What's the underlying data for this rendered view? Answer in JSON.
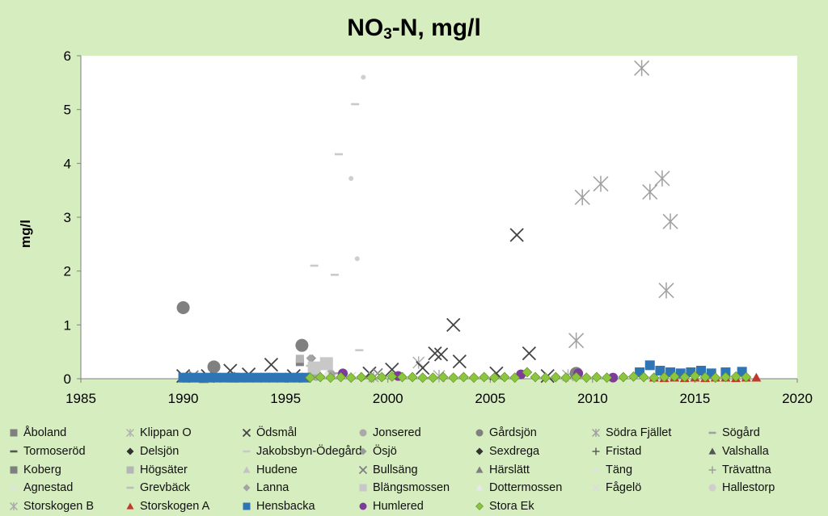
{
  "chart_data": {
    "type": "scatter",
    "title_main": "NO",
    "title_sub": "3",
    "title_rest": "-N, mg/l",
    "xlabel": "",
    "ylabel": "mg/l",
    "xlim": [
      1985,
      2020
    ],
    "ylim": [
      0,
      6
    ],
    "xticks": [
      "1985",
      "1990",
      "1995",
      "2000",
      "2005",
      "2010",
      "2015",
      "2020"
    ],
    "yticks": [
      "0",
      "1",
      "2",
      "3",
      "4",
      "5",
      "6"
    ],
    "grid": false,
    "legend_position": "bottom",
    "series": [
      {
        "name": "Åboland",
        "marker": "square",
        "color": "#7f7f7f",
        "size": 6,
        "x": [
          1990.2,
          1991,
          1992.5
        ],
        "y": [
          0.02,
          0.01,
          0.02
        ]
      },
      {
        "name": "Klippan O",
        "marker": "asterisk",
        "color": "#b0b0b0",
        "size": 7,
        "x": [
          2001.5,
          2002.5,
          2008.8
        ],
        "y": [
          0.3,
          0.05,
          0.06
        ]
      },
      {
        "name": "Ödsmål",
        "marker": "x",
        "color": "#444444",
        "size": 8,
        "x": [
          1990,
          1991.2,
          1992.3,
          1993.2,
          1994.3,
          1995.4,
          1999.1,
          2000.2,
          2001.7,
          2002.3,
          2002.6,
          2003.2,
          2003.5,
          2005.3,
          2006.3,
          2006.9,
          2007.8
        ],
        "y": [
          0.05,
          0.05,
          0.15,
          0.08,
          0.26,
          0.05,
          0.1,
          0.17,
          0.2,
          0.47,
          0.45,
          1.0,
          0.32,
          0.1,
          2.67,
          0.47,
          0.05
        ]
      },
      {
        "name": "Jonsered",
        "marker": "circle",
        "color": "#a9a9a9",
        "size": 6,
        "x": [
          1996.5,
          1997.2
        ],
        "y": [
          0.05,
          0.08
        ]
      },
      {
        "name": "Gårdsjön",
        "marker": "circle",
        "color": "#808080",
        "size": 8,
        "x": [
          1990,
          1991.5,
          1995.8,
          2009.2
        ],
        "y": [
          1.32,
          0.22,
          0.62,
          0.1
        ]
      },
      {
        "name": "Södra Fjället",
        "marker": "asterisk",
        "color": "#a0a0a0",
        "size": 9,
        "x": [
          2009.2,
          2009.5,
          2010.4,
          2012.4,
          2012.8,
          2013.4,
          2013.6,
          2013.8
        ],
        "y": [
          0.71,
          3.37,
          3.62,
          5.77,
          3.47,
          3.72,
          1.64,
          2.92
        ]
      },
      {
        "name": "Sögård",
        "marker": "dash",
        "color": "#a0a0a0",
        "size": 5,
        "x": [
          1996.5,
          1997.5
        ],
        "y": [
          0.2,
          0.1
        ]
      },
      {
        "name": "Tormoseröd",
        "marker": "dash",
        "color": "#555555",
        "size": 5,
        "x": [
          1994
        ],
        "y": [
          0.02
        ]
      },
      {
        "name": "Delsjön",
        "marker": "diamond",
        "color": "#303030",
        "size": 5,
        "x": [
          1993.5
        ],
        "y": [
          0.03
        ]
      },
      {
        "name": "Jakobsbyn-Ödegård",
        "marker": "dash",
        "color": "#c9c9c9",
        "size": 5,
        "x": [
          1996.4,
          1997.4,
          1997.6,
          1998.4,
          1998.6
        ],
        "y": [
          2.1,
          1.93,
          4.17,
          5.1,
          0.53
        ]
      },
      {
        "name": "Ösjö",
        "marker": "diamond",
        "color": "#9a9a9a",
        "size": 5,
        "x": [
          1996.3
        ],
        "y": [
          0.38
        ]
      },
      {
        "name": "Sexdrega",
        "marker": "diamond",
        "color": "#333333",
        "size": 5,
        "x": [
          1991
        ],
        "y": [
          0.04
        ]
      },
      {
        "name": "Fristad",
        "marker": "plus",
        "color": "#555555",
        "size": 5,
        "x": [
          1992.5
        ],
        "y": [
          0.05
        ]
      },
      {
        "name": "Valshalla",
        "marker": "triangle",
        "color": "#555555",
        "size": 5,
        "x": [
          1993
        ],
        "y": [
          0.04
        ]
      },
      {
        "name": "Koberg",
        "marker": "square",
        "color": "#7f7f7f",
        "size": 5,
        "x": [
          1995.7
        ],
        "y": [
          0.31
        ]
      },
      {
        "name": "Högsäter",
        "marker": "square",
        "color": "#b5b5b5",
        "size": 5,
        "x": [
          1995.7
        ],
        "y": [
          0.37
        ]
      },
      {
        "name": "Hudene",
        "marker": "triangle",
        "color": "#c3c3c3",
        "size": 5,
        "x": [
          1994.5
        ],
        "y": [
          0.05
        ]
      },
      {
        "name": "Bullsäng",
        "marker": "x",
        "color": "#7f7f7f",
        "size": 6,
        "x": [
          1990.5,
          1999.5
        ],
        "y": [
          0.06,
          0.1
        ]
      },
      {
        "name": "Härslätt",
        "marker": "triangle",
        "color": "#7f7f7f",
        "size": 5,
        "x": [
          1995
        ],
        "y": [
          0.03
        ]
      },
      {
        "name": "Täng",
        "marker": "dash",
        "color": "#e0e0e0",
        "size": 5,
        "x": [
          1995.2
        ],
        "y": [
          0.02
        ]
      },
      {
        "name": "Trävattna",
        "marker": "plus",
        "color": "#999999",
        "size": 5,
        "x": [
          1998.2
        ],
        "y": [
          0.04
        ]
      },
      {
        "name": "Agnestad",
        "marker": "dash",
        "color": "#e0e0e0",
        "size": 5,
        "x": [
          1997.8
        ],
        "y": [
          0.06
        ]
      },
      {
        "name": "Grevbäck",
        "marker": "dash",
        "color": "#bdbdbd",
        "size": 5,
        "x": [
          1996.2
        ],
        "y": [
          0.24
        ]
      },
      {
        "name": "Lanna",
        "marker": "diamond",
        "color": "#a3a3a3",
        "size": 5,
        "x": [
          1996.2
        ],
        "y": [
          0.38
        ]
      },
      {
        "name": "Blängsmossen",
        "marker": "square",
        "color": "#c8c8c8",
        "size": 8,
        "x": [
          1996.4,
          1997
        ],
        "y": [
          0.2,
          0.28
        ]
      },
      {
        "name": "Dottermossen",
        "marker": "triangle",
        "color": "#e8e8e8",
        "size": 5,
        "x": [
          1997
        ],
        "y": [
          0.1
        ]
      },
      {
        "name": "Fågelö",
        "marker": "x",
        "color": "#dddddd",
        "size": 6,
        "x": [
          1998.2
        ],
        "y": [
          0.03
        ]
      },
      {
        "name": "Hallestorp",
        "marker": "circle",
        "color": "#cfcfcf",
        "size": 3,
        "x": [
          1998.2,
          1998.5,
          1998.8
        ],
        "y": [
          3.72,
          2.23,
          5.6
        ]
      },
      {
        "name": "Storskogen B",
        "marker": "asterisk",
        "color": "#a9a9a9",
        "size": 6,
        "x": [
          1999.3
        ],
        "y": [
          0.03
        ]
      },
      {
        "name": "Storskogen A",
        "marker": "triangle",
        "color": "#c0392b",
        "size": 6,
        "x": [
          2013,
          2013.5,
          2014,
          2014.5,
          2015,
          2015.5,
          2016,
          2016.5,
          2017,
          2017.5,
          2018
        ],
        "y": [
          0.02,
          0.01,
          0.02,
          0.01,
          0.02,
          0.01,
          0.02,
          0.02,
          0.01,
          0.02,
          0.02
        ]
      },
      {
        "name": "Hensbacka",
        "marker": "square",
        "color": "#2e75b6",
        "size": 6,
        "x": [
          1990,
          1990.4,
          1990.8,
          1991.2,
          1991.6,
          1992,
          1992.4,
          1992.8,
          1993.2,
          1993.6,
          1994,
          1994.4,
          1994.8,
          1995.2,
          1995.6,
          1996,
          2012.3,
          2012.8,
          2013.3,
          2013.8,
          2014.3,
          2014.8,
          2015.3,
          2015.8,
          2016.5,
          2017.3
        ],
        "y": [
          0.02,
          0.02,
          0.02,
          0.02,
          0.02,
          0.02,
          0.02,
          0.02,
          0.02,
          0.02,
          0.02,
          0.02,
          0.02,
          0.02,
          0.02,
          0.02,
          0.12,
          0.25,
          0.15,
          0.12,
          0.1,
          0.12,
          0.15,
          0.1,
          0.12,
          0.13
        ]
      },
      {
        "name": "Humlered",
        "marker": "circle",
        "color": "#7d3c98",
        "size": 6,
        "x": [
          1997.8,
          2000.5,
          2006.5,
          2009.3,
          2011
        ],
        "y": [
          0.1,
          0.05,
          0.08,
          0.1,
          0.02
        ]
      },
      {
        "name": "Stora Ek",
        "marker": "diamond",
        "color": "#8cc63f",
        "size": 6,
        "x": [
          1996.2,
          1996.7,
          1997.2,
          1997.7,
          1998.2,
          1998.7,
          1999.2,
          1999.7,
          2000.2,
          2000.7,
          2001.2,
          2001.7,
          2002.2,
          2002.7,
          2003.2,
          2003.7,
          2004.2,
          2004.7,
          2005.2,
          2005.7,
          2006.2,
          2006.8,
          2007.2,
          2007.7,
          2008.2,
          2008.7,
          2009.2,
          2009.7,
          2010.2,
          2010.7,
          2011.5,
          2012,
          2012.5,
          2013,
          2013.5,
          2014,
          2014.5,
          2015,
          2015.5,
          2016,
          2016.5,
          2017,
          2017.5
        ],
        "y": [
          0.02,
          0.03,
          0.02,
          0.03,
          0.02,
          0.03,
          0.02,
          0.03,
          0.04,
          0.03,
          0.03,
          0.02,
          0.02,
          0.03,
          0.02,
          0.03,
          0.02,
          0.03,
          0.02,
          0.03,
          0.02,
          0.12,
          0.03,
          0.02,
          0.03,
          0.02,
          0.03,
          0.02,
          0.03,
          0.02,
          0.03,
          0.04,
          0.03,
          0.02,
          0.03,
          0.04,
          0.03,
          0.05,
          0.03,
          0.02,
          0.03,
          0.04,
          0.03
        ]
      }
    ]
  }
}
